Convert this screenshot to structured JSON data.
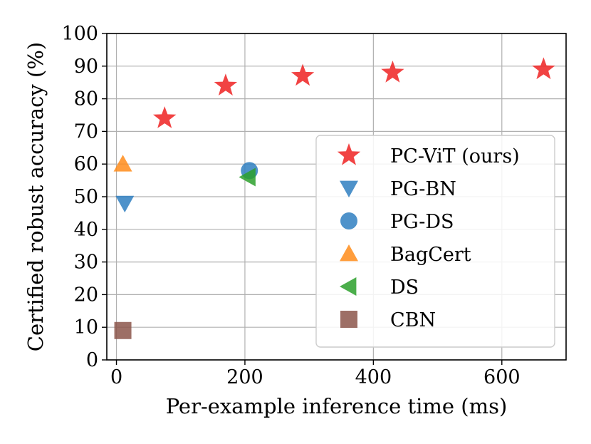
{
  "chart_data": {
    "type": "scatter",
    "title": "",
    "xlabel": "Per-example inference time (ms)",
    "ylabel": "Certified robust accuracy (%)",
    "xlim": [
      -15,
      700
    ],
    "ylim": [
      0,
      100
    ],
    "xticks": [
      0,
      200,
      400,
      600
    ],
    "yticks": [
      0,
      10,
      20,
      30,
      40,
      50,
      60,
      70,
      80,
      90,
      100
    ],
    "grid": true,
    "legend_position": "center-right",
    "series": [
      {
        "name": "PC-ViT (ours)",
        "marker": "star",
        "color": "#ee2222",
        "points": [
          {
            "x": 75,
            "y": 74
          },
          {
            "x": 170,
            "y": 84
          },
          {
            "x": 290,
            "y": 87
          },
          {
            "x": 430,
            "y": 88
          },
          {
            "x": 665,
            "y": 89
          }
        ]
      },
      {
        "name": "PG-BN",
        "marker": "triangle-down",
        "color": "#2f7fc1",
        "points": [
          {
            "x": 13,
            "y": 48
          }
        ]
      },
      {
        "name": "PG-DS",
        "marker": "circle",
        "color": "#2f7fc1",
        "points": [
          {
            "x": 207,
            "y": 58
          }
        ]
      },
      {
        "name": "BagCert",
        "marker": "triangle-up",
        "color": "#ff8c1a",
        "points": [
          {
            "x": 10,
            "y": 60
          }
        ]
      },
      {
        "name": "DS",
        "marker": "triangle-left",
        "color": "#2ca02c",
        "points": [
          {
            "x": 205,
            "y": 56
          }
        ]
      },
      {
        "name": "CBN",
        "marker": "square",
        "color": "#8c564b",
        "points": [
          {
            "x": 10,
            "y": 9
          }
        ]
      }
    ]
  }
}
